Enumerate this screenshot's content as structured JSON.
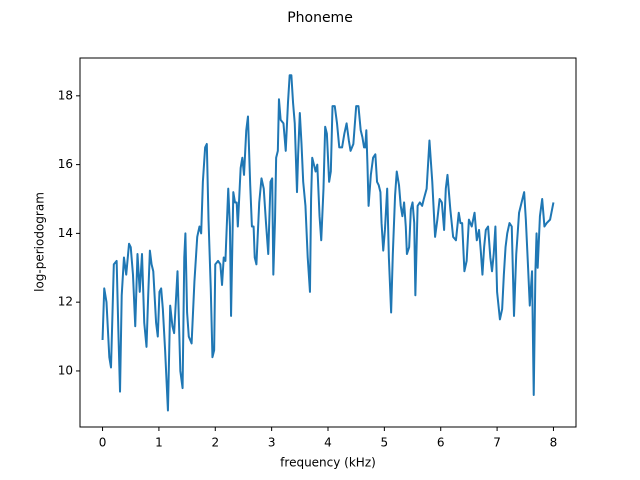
{
  "chart_data": {
    "type": "line",
    "title": "Phoneme",
    "x_label": "frequency (kHz)",
    "y_label": "log-periodogram",
    "x": [
      0,
      0.03,
      0.07,
      0.12,
      0.15,
      0.2,
      0.25,
      0.28,
      0.31,
      0.34,
      0.38,
      0.42,
      0.47,
      0.5,
      0.54,
      0.58,
      0.62,
      0.66,
      0.7,
      0.74,
      0.78,
      0.81,
      0.84,
      0.87,
      0.9,
      0.95,
      0.98,
      1.01,
      1.04,
      1.07,
      1.11,
      1.16,
      1.2,
      1.24,
      1.27,
      1.33,
      1.38,
      1.42,
      1.45,
      1.47,
      1.5,
      1.53,
      1.58,
      1.63,
      1.68,
      1.72,
      1.75,
      1.78,
      1.82,
      1.85,
      1.88,
      1.92,
      1.95,
      1.98,
      2.0,
      2.05,
      2.09,
      2.12,
      2.15,
      2.18,
      2.23,
      2.26,
      2.28,
      2.32,
      2.35,
      2.38,
      2.4,
      2.45,
      2.48,
      2.51,
      2.55,
      2.58,
      2.62,
      2.65,
      2.68,
      2.7,
      2.73,
      2.78,
      2.82,
      2.86,
      2.9,
      2.94,
      2.98,
      3.01,
      3.03,
      3.06,
      3.08,
      3.11,
      3.13,
      3.16,
      3.21,
      3.25,
      3.29,
      3.32,
      3.35,
      3.38,
      3.41,
      3.45,
      3.47,
      3.5,
      3.53,
      3.56,
      3.6,
      3.64,
      3.68,
      3.7,
      3.72,
      3.75,
      3.78,
      3.81,
      3.85,
      3.88,
      3.92,
      3.95,
      3.98,
      4.02,
      4.05,
      4.08,
      4.12,
      4.16,
      4.2,
      4.25,
      4.29,
      4.33,
      4.37,
      4.4,
      4.45,
      4.5,
      4.54,
      4.58,
      4.61,
      4.64,
      4.66,
      4.68,
      4.7,
      4.72,
      4.76,
      4.8,
      4.84,
      4.87,
      4.9,
      4.93,
      4.95,
      4.98,
      5.01,
      5.05,
      5.08,
      5.12,
      5.15,
      5.19,
      5.22,
      5.26,
      5.29,
      5.32,
      5.35,
      5.38,
      5.4,
      5.44,
      5.47,
      5.5,
      5.53,
      5.55,
      5.59,
      5.63,
      5.67,
      5.7,
      5.75,
      5.8,
      5.85,
      5.9,
      5.94,
      5.98,
      6.02,
      6.06,
      6.09,
      6.12,
      6.17,
      6.22,
      6.27,
      6.32,
      6.35,
      6.38,
      6.42,
      6.46,
      6.5,
      6.55,
      6.6,
      6.64,
      6.68,
      6.71,
      6.74,
      6.77,
      6.8,
      6.84,
      6.88,
      6.91,
      6.94,
      6.97,
      7.0,
      7.05,
      7.09,
      7.12,
      7.15,
      7.18,
      7.22,
      7.26,
      7.3,
      7.34,
      7.39,
      7.45,
      7.48,
      7.51,
      7.55,
      7.58,
      7.62,
      7.65,
      7.68,
      7.7,
      7.72,
      7.76,
      7.8,
      7.84,
      7.88,
      7.94,
      8.0
    ],
    "series": [
      {
        "color": "#1f77b4",
        "values": [
          10.9,
          12.4,
          12.0,
          10.4,
          10.1,
          13.1,
          13.2,
          11.2,
          9.4,
          12.2,
          13.3,
          12.8,
          13.7,
          13.6,
          12.8,
          11.3,
          13.4,
          12.3,
          13.4,
          11.4,
          10.7,
          12.2,
          13.5,
          13.1,
          12.9,
          11.4,
          11.0,
          12.3,
          12.4,
          11.8,
          10.6,
          8.85,
          11.9,
          11.3,
          11.1,
          12.9,
          10.0,
          9.5,
          13.3,
          14.0,
          11.7,
          11.0,
          10.8,
          12.6,
          13.9,
          14.2,
          14.0,
          15.5,
          16.5,
          16.6,
          14.4,
          12.4,
          10.4,
          10.6,
          13.1,
          13.2,
          13.1,
          12.5,
          13.3,
          13.2,
          15.3,
          14.2,
          11.6,
          15.2,
          14.9,
          14.9,
          14.2,
          15.9,
          16.2,
          15.7,
          17.0,
          17.4,
          15.4,
          14.2,
          14.2,
          13.3,
          13.1,
          14.9,
          15.6,
          15.3,
          14.3,
          13.4,
          15.5,
          15.6,
          12.8,
          14.4,
          16.2,
          16.4,
          17.9,
          17.3,
          17.2,
          16.4,
          17.8,
          18.6,
          18.6,
          17.8,
          17.2,
          15.2,
          16.3,
          17.5,
          16.6,
          15.5,
          14.8,
          13.3,
          12.3,
          15.0,
          16.2,
          16.0,
          15.8,
          16.0,
          14.5,
          13.8,
          15.3,
          17.1,
          16.9,
          15.5,
          15.8,
          17.7,
          17.7,
          17.2,
          16.5,
          16.5,
          16.9,
          17.2,
          16.7,
          16.4,
          16.6,
          17.7,
          17.7,
          17.0,
          16.8,
          16.5,
          16.5,
          17.0,
          16.0,
          14.8,
          15.7,
          16.2,
          16.3,
          15.5,
          15.4,
          15.2,
          14.3,
          13.5,
          14.1,
          15.3,
          13.3,
          11.7,
          13.4,
          15.1,
          15.8,
          15.4,
          14.8,
          14.5,
          14.9,
          14.2,
          13.4,
          13.6,
          14.7,
          14.9,
          14.3,
          12.2,
          14.8,
          14.9,
          14.8,
          15.0,
          15.3,
          16.7,
          15.5,
          13.9,
          14.4,
          15.0,
          14.9,
          14.1,
          15.3,
          15.7,
          14.7,
          13.9,
          13.8,
          14.6,
          14.3,
          14.3,
          12.9,
          13.2,
          14.4,
          14.2,
          14.6,
          13.8,
          14.1,
          13.5,
          12.8,
          13.6,
          14.1,
          14.2,
          13.3,
          12.9,
          13.4,
          14.2,
          12.3,
          11.5,
          11.8,
          12.8,
          13.6,
          14.0,
          14.3,
          14.2,
          11.6,
          13.4,
          14.6,
          15.0,
          15.2,
          14.4,
          13.0,
          11.9,
          12.9,
          9.3,
          12.9,
          14.0,
          13.0,
          14.5,
          15.0,
          14.2,
          14.3,
          14.4,
          14.9
        ]
      }
    ],
    "xlim": [
      -0.4,
      8.4
    ],
    "xticks": [
      0,
      1,
      2,
      3,
      4,
      5,
      6,
      7,
      8
    ],
    "ylim": [
      8.37,
      19.1
    ],
    "yticks": [
      10,
      12,
      14,
      16,
      18
    ],
    "grid": false
  }
}
